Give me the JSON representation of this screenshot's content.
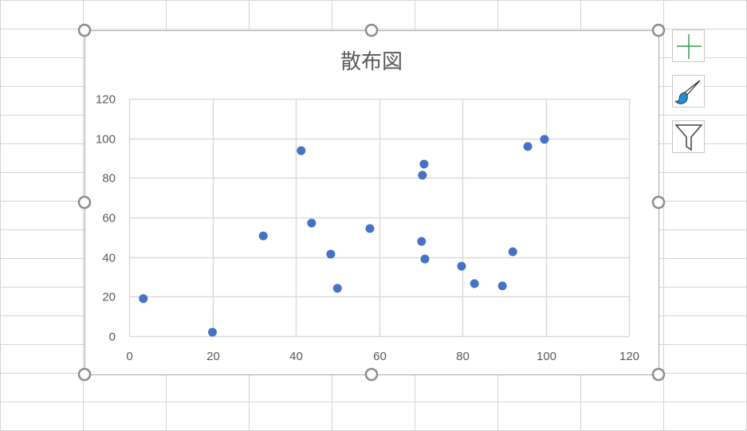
{
  "chart_data": {
    "type": "scatter",
    "title": "散布図",
    "xlabel": "",
    "ylabel": "",
    "xlim": [
      0,
      120
    ],
    "ylim": [
      0,
      120
    ],
    "xticks": [
      0,
      20,
      40,
      60,
      80,
      100,
      120
    ],
    "yticks": [
      0,
      20,
      40,
      60,
      80,
      100,
      120
    ],
    "grid": true,
    "legend": "none",
    "marker_color": "#4472C4",
    "points": [
      {
        "x": 3.4,
        "y": 19
      },
      {
        "x": 20,
        "y": 2
      },
      {
        "x": 32.2,
        "y": 50.7
      },
      {
        "x": 41.3,
        "y": 93.8
      },
      {
        "x": 43.8,
        "y": 57.2
      },
      {
        "x": 48.4,
        "y": 41.5
      },
      {
        "x": 50,
        "y": 24.2
      },
      {
        "x": 57.8,
        "y": 54.4
      },
      {
        "x": 70.2,
        "y": 47.9
      },
      {
        "x": 70.4,
        "y": 81.4
      },
      {
        "x": 70.8,
        "y": 87
      },
      {
        "x": 71,
        "y": 39
      },
      {
        "x": 79.8,
        "y": 35.4
      },
      {
        "x": 82.9,
        "y": 26.6
      },
      {
        "x": 89.6,
        "y": 25.4
      },
      {
        "x": 92.1,
        "y": 42.7
      },
      {
        "x": 95.7,
        "y": 95.9
      },
      {
        "x": 99.7,
        "y": 99.5
      }
    ]
  },
  "side_buttons": [
    {
      "icon": "plus-icon",
      "color": "#3a9a4a"
    },
    {
      "icon": "paintbrush-icon",
      "color": "#1e90d8"
    },
    {
      "icon": "filter-icon",
      "color": "#404040"
    }
  ]
}
